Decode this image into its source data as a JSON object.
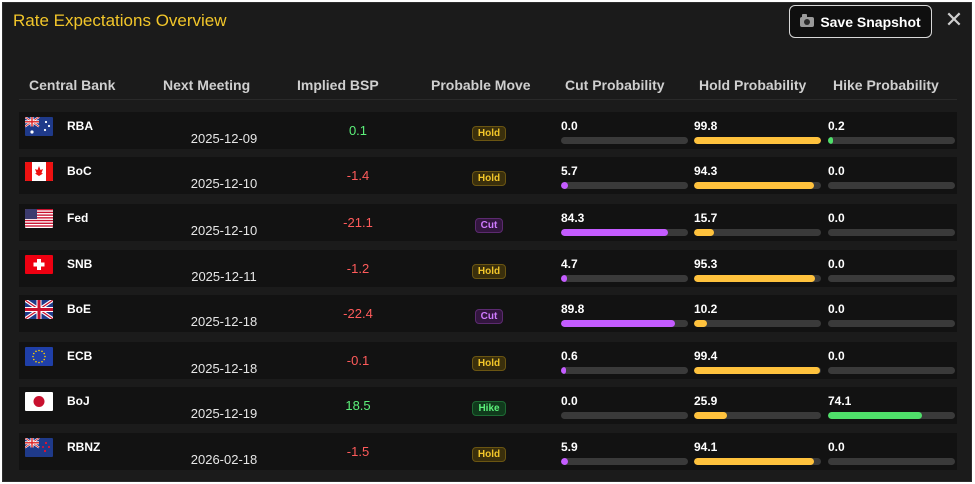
{
  "window": {
    "title": "Rate Expectations Overview",
    "save_label": "Save Snapshot",
    "close_glyph": "✕"
  },
  "columns": [
    "Central Bank",
    "Next Meeting",
    "Implied BSP",
    "Probable Move",
    "Cut Probability",
    "Hold Probability",
    "Hike Probability"
  ],
  "colors": {
    "positive": "#5cf07a",
    "negative": "#ff5b5b",
    "cut_bar": "#c45cff",
    "hold_bar": "#ffc23d",
    "hike_bar": "#4fe06a"
  },
  "rows": [
    {
      "bank": "RBA",
      "flag": "au-icon",
      "date": "2025-12-09",
      "bsp": "0.1",
      "bsp_sign": "positive",
      "move": "Hold",
      "move_type": "hold",
      "cut": "0.0",
      "hold": "99.8",
      "hike": "0.2"
    },
    {
      "bank": "BoC",
      "flag": "ca-icon",
      "date": "2025-12-10",
      "bsp": "-1.4",
      "bsp_sign": "negative",
      "move": "Hold",
      "move_type": "hold",
      "cut": "5.7",
      "hold": "94.3",
      "hike": "0.0"
    },
    {
      "bank": "Fed",
      "flag": "us-icon",
      "date": "2025-12-10",
      "bsp": "-21.1",
      "bsp_sign": "negative",
      "move": "Cut",
      "move_type": "cut",
      "cut": "84.3",
      "hold": "15.7",
      "hike": "0.0"
    },
    {
      "bank": "SNB",
      "flag": "ch-icon",
      "date": "2025-12-11",
      "bsp": "-1.2",
      "bsp_sign": "negative",
      "move": "Hold",
      "move_type": "hold",
      "cut": "4.7",
      "hold": "95.3",
      "hike": "0.0"
    },
    {
      "bank": "BoE",
      "flag": "gb-icon",
      "date": "2025-12-18",
      "bsp": "-22.4",
      "bsp_sign": "negative",
      "move": "Cut",
      "move_type": "cut",
      "cut": "89.8",
      "hold": "10.2",
      "hike": "0.0"
    },
    {
      "bank": "ECB",
      "flag": "eu-icon",
      "date": "2025-12-18",
      "bsp": "-0.1",
      "bsp_sign": "negative",
      "move": "Hold",
      "move_type": "hold",
      "cut": "0.6",
      "hold": "99.4",
      "hike": "0.0"
    },
    {
      "bank": "BoJ",
      "flag": "jp-icon",
      "date": "2025-12-19",
      "bsp": "18.5",
      "bsp_sign": "positive",
      "move": "Hike",
      "move_type": "hike",
      "cut": "0.0",
      "hold": "25.9",
      "hike": "74.1"
    },
    {
      "bank": "RBNZ",
      "flag": "nz-icon",
      "date": "2026-02-18",
      "bsp": "-1.5",
      "bsp_sign": "negative",
      "move": "Hold",
      "move_type": "hold",
      "cut": "5.9",
      "hold": "94.1",
      "hike": "0.0"
    }
  ]
}
